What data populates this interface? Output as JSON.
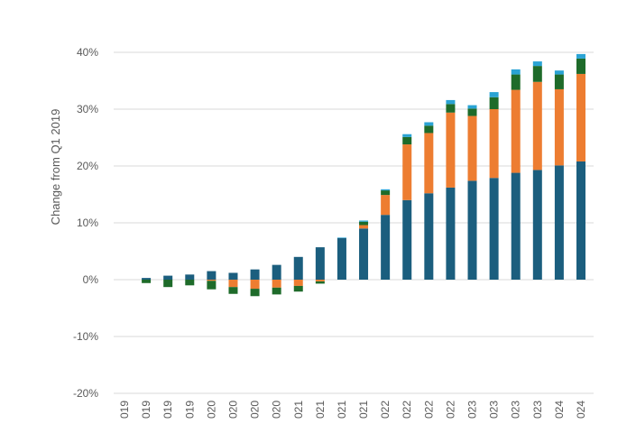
{
  "chart_data": {
    "type": "bar",
    "stacked": true,
    "title": "",
    "xlabel": "",
    "ylabel": "Change from Q1 2019",
    "ylim": [
      -20,
      40
    ],
    "yticks": [
      -20,
      -10,
      0,
      10,
      20,
      30,
      40
    ],
    "ytick_labels": [
      "-20%",
      "-10%",
      "0%",
      "10%",
      "20%",
      "30%",
      "40%"
    ],
    "grid": true,
    "legend": "none",
    "categories": [
      "019",
      "019",
      "019",
      "019",
      "020",
      "020",
      "020",
      "020",
      "021",
      "021",
      "021",
      "021",
      "022",
      "022",
      "022",
      "022",
      "023",
      "023",
      "023",
      "023",
      "024",
      "024"
    ],
    "series": [
      {
        "color": "#1b5e7e",
        "values": [
          0,
          0.3,
          0.7,
          0.9,
          1.5,
          1.2,
          1.8,
          2.6,
          4.0,
          5.7,
          7.3,
          9.0,
          11.4,
          14.0,
          15.2,
          16.2,
          17.4,
          17.9,
          18.8,
          19.3,
          20.1,
          20.8
        ]
      },
      {
        "color": "#ed7d31",
        "values": [
          0,
          0,
          0,
          0,
          -0.2,
          -1.3,
          -1.6,
          -1.4,
          -1.1,
          -0.3,
          0,
          0.6,
          3.5,
          9.8,
          10.6,
          13.2,
          11.4,
          12.1,
          14.6,
          15.5,
          13.4,
          15.4
        ]
      },
      {
        "color": "#1e6b2a",
        "values": [
          0,
          -0.6,
          -1.3,
          -1.0,
          -1.5,
          -1.2,
          -1.3,
          -1.2,
          -1.0,
          -0.4,
          0,
          0.6,
          0.8,
          1.3,
          1.3,
          1.5,
          1.3,
          2.1,
          2.7,
          2.8,
          2.6,
          2.7
        ]
      },
      {
        "color": "#2aa3d4",
        "values": [
          0,
          0,
          0,
          0,
          0,
          0,
          0,
          0,
          0,
          0,
          0.1,
          0.2,
          0.2,
          0.5,
          0.6,
          0.7,
          0.6,
          0.9,
          0.9,
          0.8,
          0.7,
          0.8
        ]
      }
    ]
  }
}
